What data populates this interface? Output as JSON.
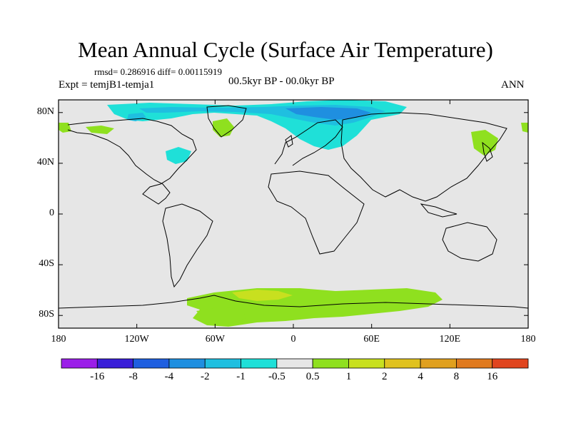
{
  "title": "Mean Annual Cycle (Surface Air Temperature)",
  "stats": "rmsd= 0.286916 diff= 0.00115919",
  "expt": "Expt = temjB1-temja1",
  "period": "00.5kyr BP - 00.0kyr BP",
  "season": "ANN",
  "lat_labels": [
    "80N",
    "40N",
    "0",
    "40S",
    "80S"
  ],
  "lat_values": [
    80,
    40,
    0,
    -40,
    -80
  ],
  "lon_labels": [
    "180",
    "120W",
    "60W",
    "0",
    "60E",
    "120E",
    "180"
  ],
  "lon_values": [
    -180,
    -120,
    -60,
    0,
    60,
    120,
    180
  ],
  "colorbar": {
    "colors": [
      "#9b1fe8",
      "#3a1fd8",
      "#1f5fe0",
      "#1f8fe0",
      "#1fbfe0",
      "#1fe0d8",
      "#e6e6e6",
      "#8fe01f",
      "#c8e01f",
      "#e0c21f",
      "#e0a01f",
      "#e07a1f",
      "#e0451f"
    ],
    "labels": [
      "-16",
      "-8",
      "-4",
      "-2",
      "-1",
      "-0.5",
      "0.5",
      "1",
      "2",
      "4",
      "8",
      "16"
    ]
  },
  "colors": {
    "ocean": "#e6e6e6",
    "coast": "#000000"
  }
}
